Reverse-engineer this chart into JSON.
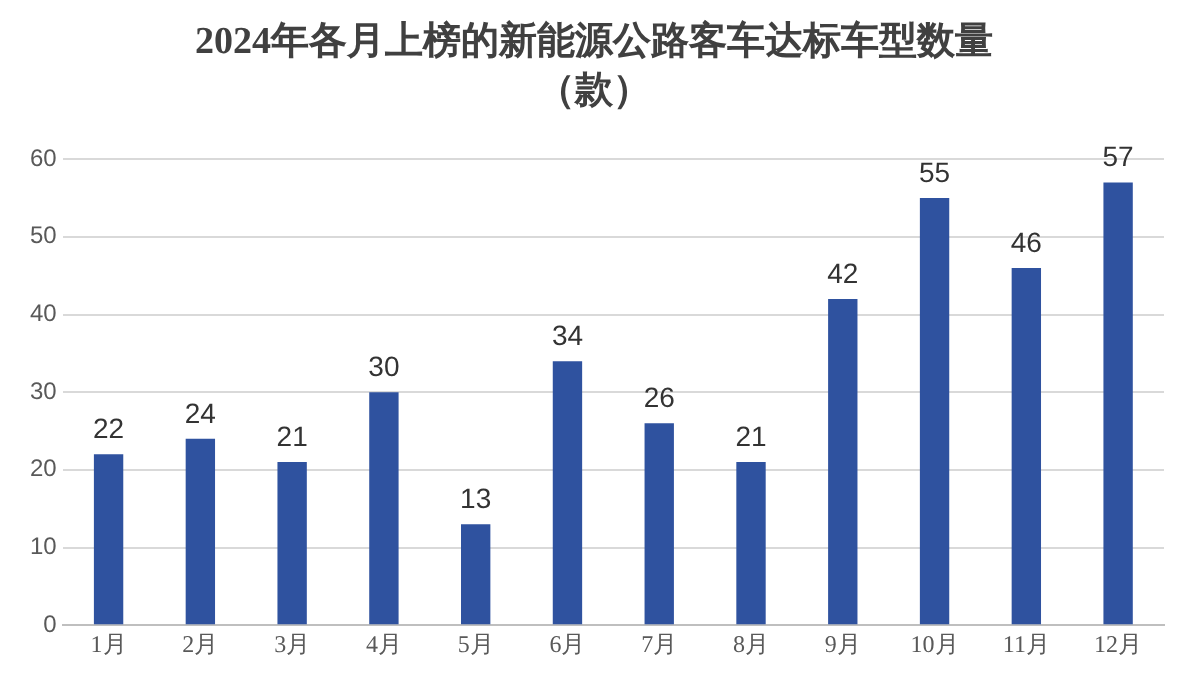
{
  "chart_data": {
    "type": "bar",
    "title": "2024年各月上榜的新能源公路客车达标车型数量",
    "subtitle": "（款）",
    "categories": [
      "1月",
      "2月",
      "3月",
      "4月",
      "5月",
      "6月",
      "7月",
      "8月",
      "9月",
      "10月",
      "11月",
      "12月"
    ],
    "values": [
      22,
      24,
      21,
      30,
      13,
      34,
      26,
      21,
      42,
      55,
      46,
      57
    ],
    "color": "#2f529f",
    "ylim": [
      0,
      60
    ],
    "yticks": [
      0,
      10,
      20,
      30,
      40,
      50,
      60
    ],
    "grid": "y",
    "data_labels": true
  }
}
